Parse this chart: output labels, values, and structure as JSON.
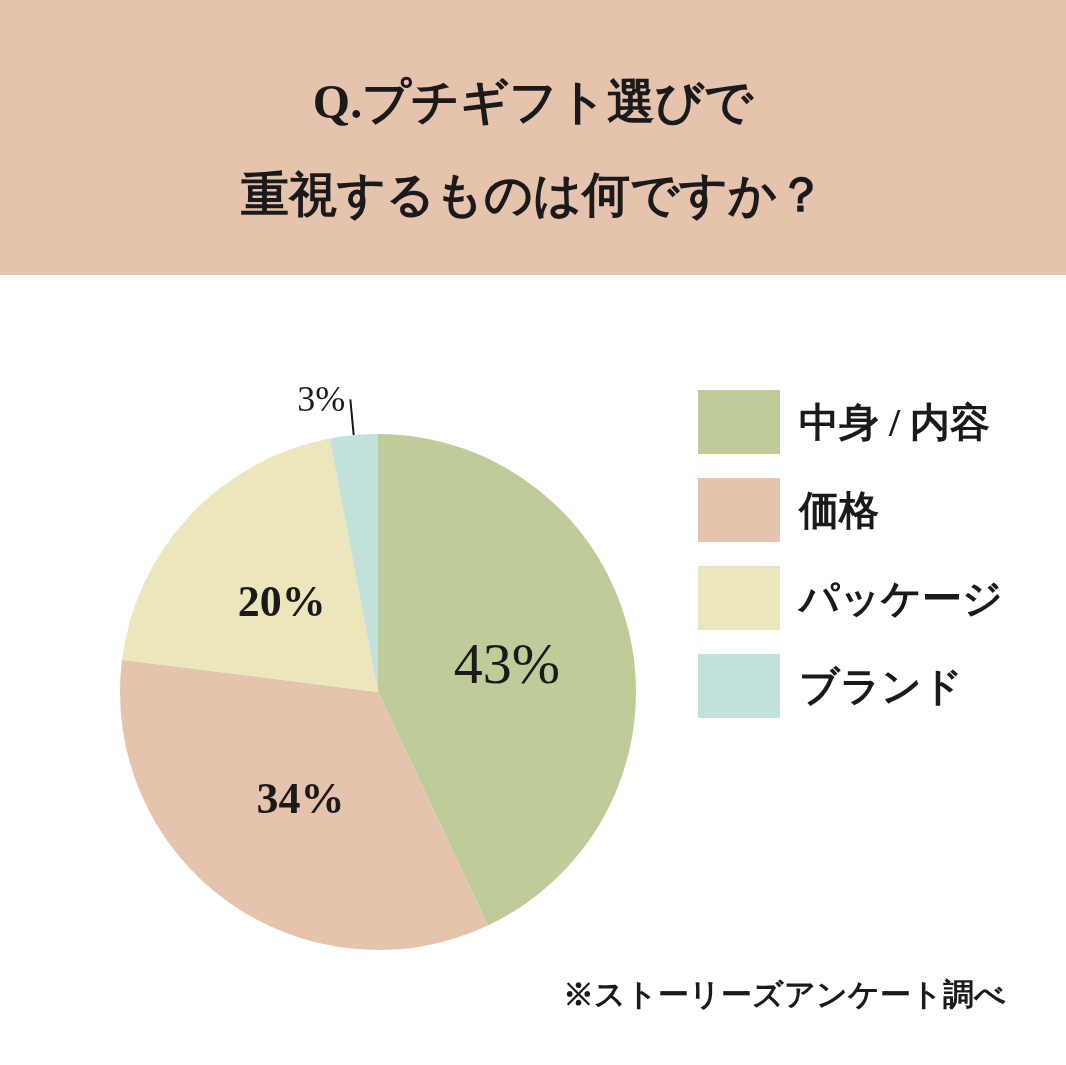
{
  "chart_data": {
    "type": "pie",
    "title": "Q.プチギフト選びで",
    "subtitle": "重視するものは何ですか？",
    "categories": [
      "中身 / 内容",
      "価格",
      "パッケージ",
      "ブランド"
    ],
    "values": [
      43,
      34,
      20,
      3
    ],
    "colors": [
      "#bfcc9a",
      "#e6c3ad",
      "#ebe6bb",
      "#c3e1db"
    ],
    "value_labels": [
      "43%",
      "34%",
      "20%",
      "3%"
    ],
    "legend": "right",
    "annotations": [
      "※ストーリーズアンケート調べ"
    ]
  }
}
